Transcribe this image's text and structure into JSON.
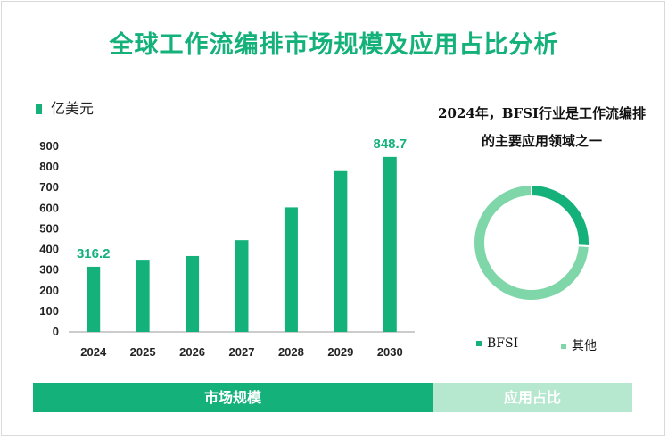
{
  "title": "全球工作流编排市场规模及应用占比分析",
  "unit_label": "亿美元",
  "colors": {
    "accent": "#14b17b",
    "light": "#7fd6a8",
    "tab_inactive": "#b6e7cf"
  },
  "chart_data": [
    {
      "type": "bar",
      "categories": [
        "2024",
        "2025",
        "2026",
        "2027",
        "2028",
        "2029",
        "2030"
      ],
      "values": [
        316.2,
        350,
        368,
        445,
        604,
        780,
        848.7
      ],
      "labeled_points": [
        {
          "index": 0,
          "text": "316.2"
        },
        {
          "index": 6,
          "text": "848.7"
        }
      ],
      "yticks": [
        0,
        100,
        200,
        300,
        400,
        500,
        600,
        700,
        800,
        900
      ],
      "ylim": [
        0,
        900
      ],
      "grid": false
    },
    {
      "type": "pie",
      "donut": true,
      "labels": [
        "BFSI",
        "其他"
      ],
      "values": [
        26,
        74
      ],
      "colors": [
        "#14b17b",
        "#7fd6a8"
      ],
      "caption_lines": [
        "2024年，BFSI行业是工作流编排",
        "的主要应用领域之一"
      ],
      "legend": [
        "BFSI",
        "其他"
      ]
    }
  ],
  "tabs": [
    {
      "label": "市场规模"
    },
    {
      "label": "应用占比"
    }
  ]
}
